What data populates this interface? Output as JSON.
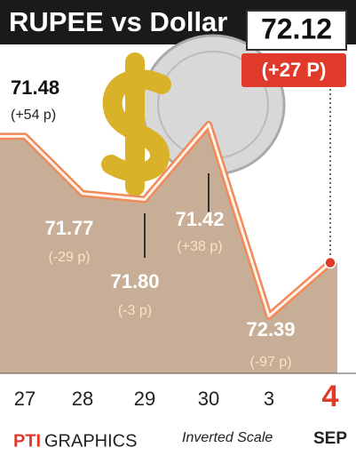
{
  "chart_data": {
    "type": "line",
    "title": "RUPEE vs Dollar",
    "categories": [
      "27",
      "28",
      "29",
      "30",
      "3",
      "4"
    ],
    "month": "SEP",
    "values": [
      71.48,
      71.77,
      71.8,
      71.42,
      72.39,
      72.12
    ],
    "value_labels": [
      "71.48",
      "71.77",
      "71.80",
      "71.42",
      "72.39",
      "72.12"
    ],
    "changes": [
      "(+54 p)",
      "(-29 p)",
      "(-3 p)",
      "(+38 p)",
      "(-97 p)",
      "(+27 P)"
    ],
    "ylim": [
      71.06,
      72.68
    ],
    "invert_y": true,
    "scale_note": "Inverted Scale",
    "source": "PTI",
    "source_suffix": "GRAPHICS",
    "color": "#f08a5a",
    "area_color": "#c8ad97",
    "highlight_color": "#e03a2a"
  }
}
